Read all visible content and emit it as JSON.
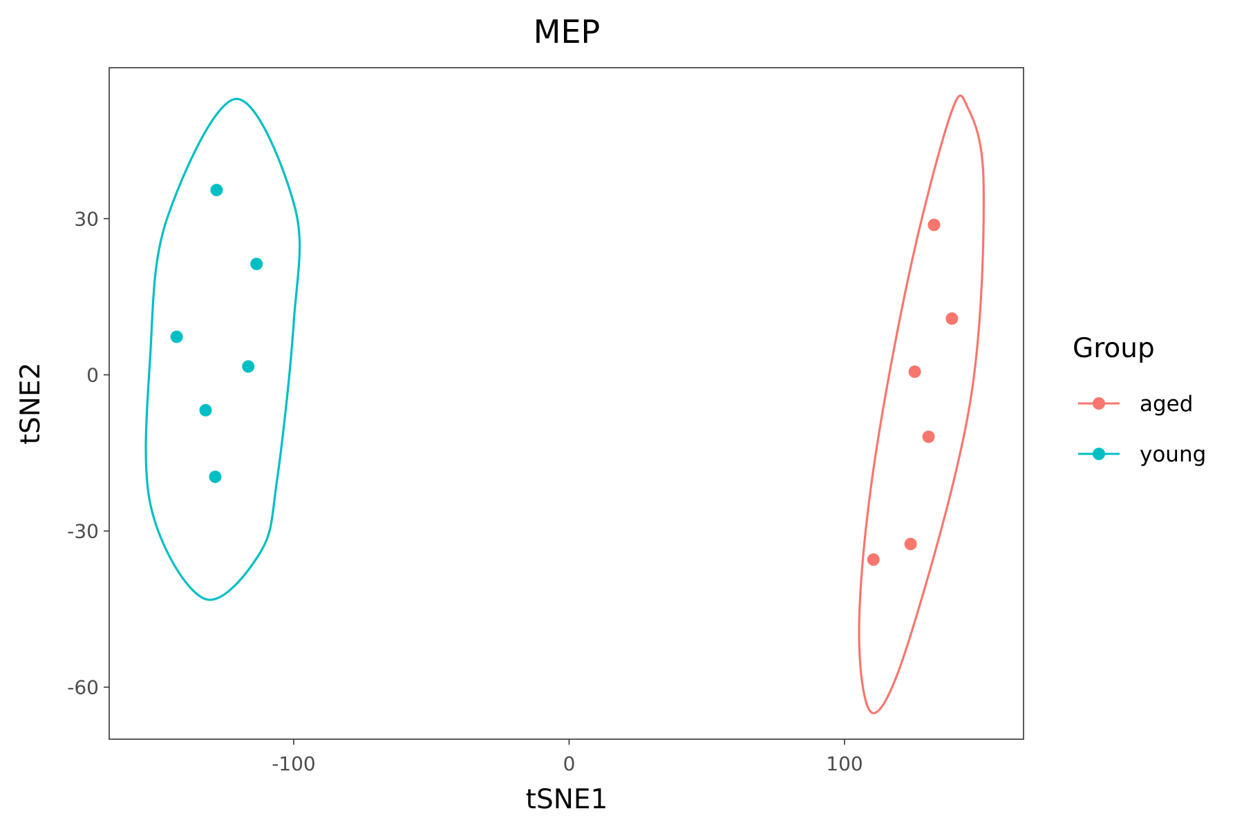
{
  "chart_data": {
    "type": "scatter",
    "title": "MEP",
    "xlabel": "tSNE1",
    "ylabel": "tSNE2",
    "xlim": [
      -167,
      165
    ],
    "ylim": [
      -70,
      59
    ],
    "x_ticks": [
      -100,
      0,
      100
    ],
    "y_ticks": [
      -60,
      -30,
      0,
      30
    ],
    "grid": false,
    "legend": {
      "title": "Group",
      "position": "right"
    },
    "series": [
      {
        "name": "aged",
        "color": "#F8766D",
        "points": [
          {
            "x": 132.5,
            "y": 28.8
          },
          {
            "x": 139.0,
            "y": 10.8
          },
          {
            "x": 125.5,
            "y": 0.6
          },
          {
            "x": 130.5,
            "y": -11.9
          },
          {
            "x": 124.0,
            "y": -32.5
          },
          {
            "x": 110.5,
            "y": -35.5
          }
        ],
        "ellipse": [
          {
            "x": 144.5,
            "y": 51.6
          },
          {
            "x": 150.5,
            "y": 36.5
          },
          {
            "x": 145.7,
            "y": -5.0
          },
          {
            "x": 124.0,
            "y": -50.0
          },
          {
            "x": 110.5,
            "y": -65.0
          },
          {
            "x": 105.3,
            "y": -50.0
          },
          {
            "x": 110.0,
            "y": -20.0
          },
          {
            "x": 123.5,
            "y": 19.5
          },
          {
            "x": 138.5,
            "y": 50.0
          }
        ]
      },
      {
        "name": "young",
        "color": "#00BFC4",
        "points": [
          {
            "x": -128.0,
            "y": 35.5
          },
          {
            "x": -113.5,
            "y": 21.3
          },
          {
            "x": -142.5,
            "y": 7.3
          },
          {
            "x": -116.5,
            "y": 1.6
          },
          {
            "x": -132.0,
            "y": -6.8
          },
          {
            "x": -128.5,
            "y": -19.6
          }
        ],
        "ellipse": [
          {
            "x": -121.0,
            "y": 53.0
          },
          {
            "x": -99.5,
            "y": 32.0
          },
          {
            "x": -100.0,
            "y": 10.0
          },
          {
            "x": -106.0,
            "y": -20.0
          },
          {
            "x": -112.0,
            "y": -34.0
          },
          {
            "x": -132.5,
            "y": -43.0
          },
          {
            "x": -152.0,
            "y": -25.0
          },
          {
            "x": -152.0,
            "y": 4.5
          },
          {
            "x": -146.0,
            "y": 30.0
          }
        ]
      }
    ]
  }
}
